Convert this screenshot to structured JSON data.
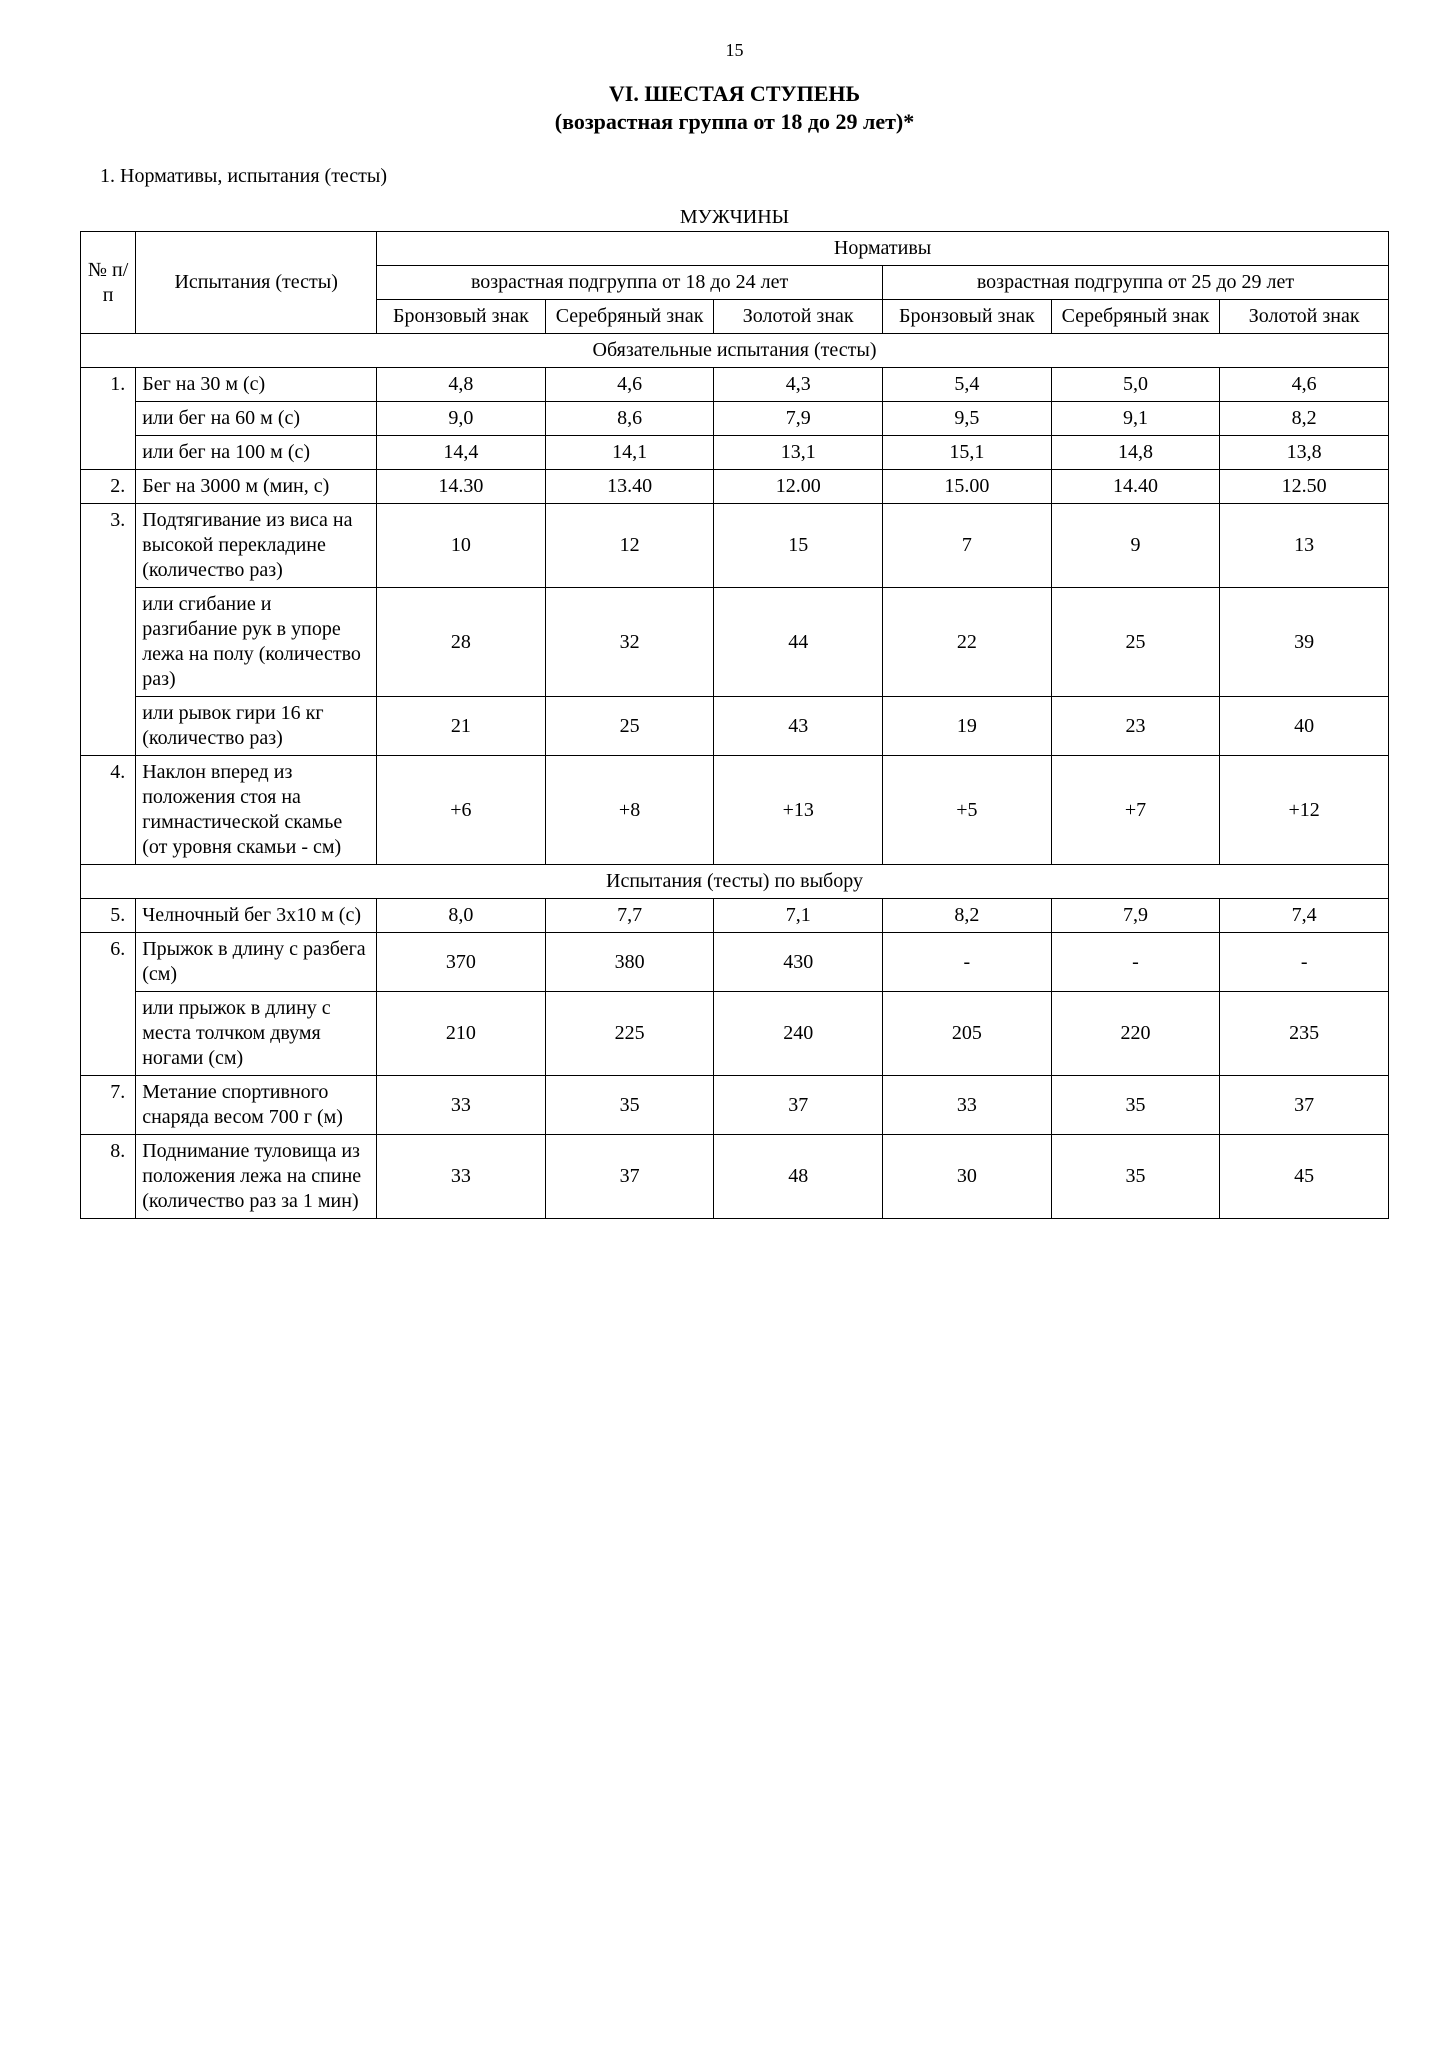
{
  "page_number": "15",
  "heading_title": "VI. ШЕСТАЯ СТУПЕНЬ",
  "heading_subtitle": "(возрастная группа от 18 до 29 лет)*",
  "intro_line": "1. Нормативы, испытания (тесты)",
  "table_label": "МУЖЧИНЫ",
  "header": {
    "col_num": "№ п/п",
    "col_test": "Испытания (тесты)",
    "norms": "Нормативы",
    "group1": "возрастная подгруппа от 18 до 24 лет",
    "group2": "возрастная подгруппа от 25 до 29 лет",
    "bronze": "Бронзовый знак",
    "silver": "Серебряный знак",
    "gold": "Золотой знак"
  },
  "section_mandatory": "Обязательные испытания (тесты)",
  "section_optional": "Испытания (тесты) по выбору",
  "rows": {
    "r1a": {
      "n": "1.",
      "t": "Бег на 30 м (с)",
      "v": [
        "4,8",
        "4,6",
        "4,3",
        "5,4",
        "5,0",
        "4,6"
      ]
    },
    "r1b": {
      "t": "или бег на 60 м (с)",
      "v": [
        "9,0",
        "8,6",
        "7,9",
        "9,5",
        "9,1",
        "8,2"
      ]
    },
    "r1c": {
      "t": "или бег на 100 м (с)",
      "v": [
        "14,4",
        "14,1",
        "13,1",
        "15,1",
        "14,8",
        "13,8"
      ]
    },
    "r2": {
      "n": "2.",
      "t": "Бег на 3000 м (мин, с)",
      "v": [
        "14.30",
        "13.40",
        "12.00",
        "15.00",
        "14.40",
        "12.50"
      ]
    },
    "r3a": {
      "n": "3.",
      "t": "Подтягивание из виса на высокой перекладине (количество раз)",
      "v": [
        "10",
        "12",
        "15",
        "7",
        "9",
        "13"
      ]
    },
    "r3b": {
      "t": "или сгибание и разгибание рук в упоре лежа на полу (количество раз)",
      "v": [
        "28",
        "32",
        "44",
        "22",
        "25",
        "39"
      ]
    },
    "r3c": {
      "t": "или рывок гири 16 кг (количество раз)",
      "v": [
        "21",
        "25",
        "43",
        "19",
        "23",
        "40"
      ]
    },
    "r4": {
      "n": "4.",
      "t": "Наклон вперед из положения стоя на гимнастической скамье (от уровня скамьи - см)",
      "v": [
        "+6",
        "+8",
        "+13",
        "+5",
        "+7",
        "+12"
      ]
    },
    "r5": {
      "n": "5.",
      "t": "Челночный бег 3x10 м (с)",
      "v": [
        "8,0",
        "7,7",
        "7,1",
        "8,2",
        "7,9",
        "7,4"
      ]
    },
    "r6a": {
      "n": "6.",
      "t": "Прыжок в длину с разбега (см)",
      "v": [
        "370",
        "380",
        "430",
        "-",
        "-",
        "-"
      ]
    },
    "r6b": {
      "t": "или прыжок в длину с места толчком двумя ногами (см)",
      "v": [
        "210",
        "225",
        "240",
        "205",
        "220",
        "235"
      ]
    },
    "r7": {
      "n": "7.",
      "t": "Метание спортивного снаряда весом 700 г (м)",
      "v": [
        "33",
        "35",
        "37",
        "33",
        "35",
        "37"
      ]
    },
    "r8": {
      "n": "8.",
      "t": "Поднимание туловища из положения лежа на спине (количество раз за 1 мин)",
      "v": [
        "33",
        "37",
        "48",
        "30",
        "35",
        "45"
      ]
    }
  }
}
